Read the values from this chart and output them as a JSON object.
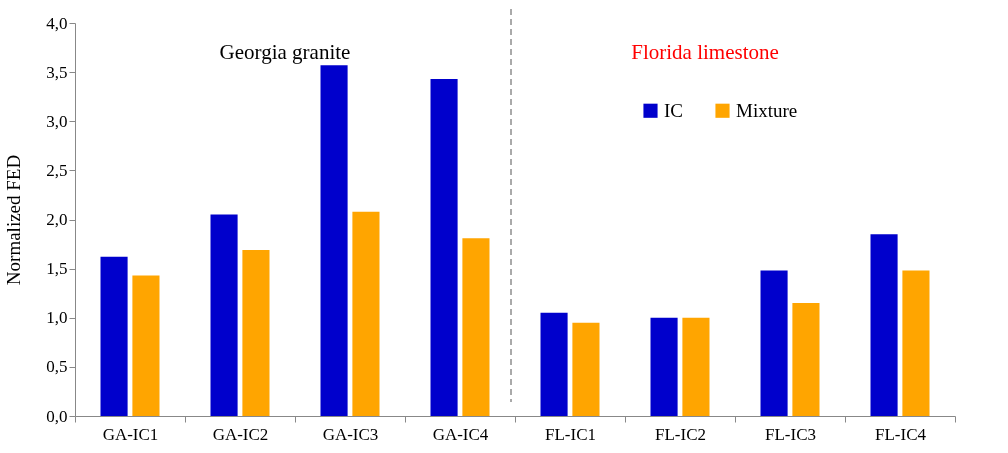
{
  "chart_data": {
    "type": "bar",
    "ylabel": "Normalized FED",
    "categories": [
      "GA-IC1",
      "GA-IC2",
      "GA-IC3",
      "GA-IC4",
      "FL-IC1",
      "FL-IC2",
      "FL-IC3",
      "FL-IC4"
    ],
    "series": [
      {
        "name": "IC",
        "color": "#0000cc",
        "values": [
          1.62,
          2.05,
          3.57,
          3.43,
          1.05,
          1.0,
          1.48,
          1.85
        ]
      },
      {
        "name": "Mixture",
        "color": "#ffa500",
        "values": [
          1.43,
          1.69,
          2.08,
          1.81,
          0.95,
          1.0,
          1.15,
          1.48
        ]
      }
    ],
    "ylim": [
      0,
      4
    ],
    "yticks": [
      {
        "value": 0,
        "label": "0,0"
      },
      {
        "value": 0.5,
        "label": "0,5"
      },
      {
        "value": 1,
        "label": "1,0"
      },
      {
        "value": 1.5,
        "label": "1,5"
      },
      {
        "value": 2,
        "label": "2,0"
      },
      {
        "value": 2.5,
        "label": "2,5"
      },
      {
        "value": 3,
        "label": "3,0"
      },
      {
        "value": 3.5,
        "label": "3,5"
      },
      {
        "value": 4,
        "label": "4,0"
      }
    ],
    "annotations": [
      "Georgia granite",
      "Florida limestone"
    ],
    "grid": false,
    "legend": "top right"
  }
}
